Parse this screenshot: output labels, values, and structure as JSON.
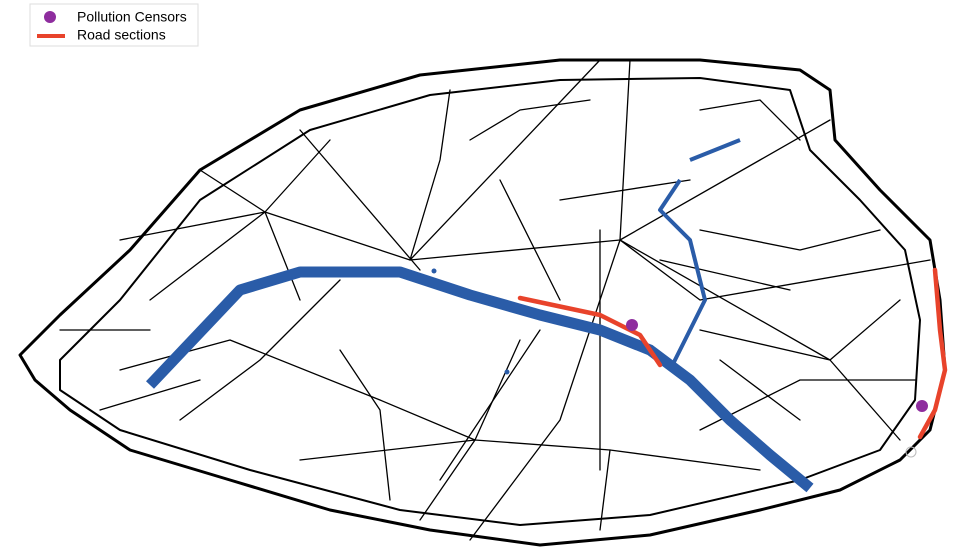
{
  "legend": {
    "items": [
      {
        "label": "Pollution Censors"
      },
      {
        "label": "Road sections"
      }
    ]
  }
}
